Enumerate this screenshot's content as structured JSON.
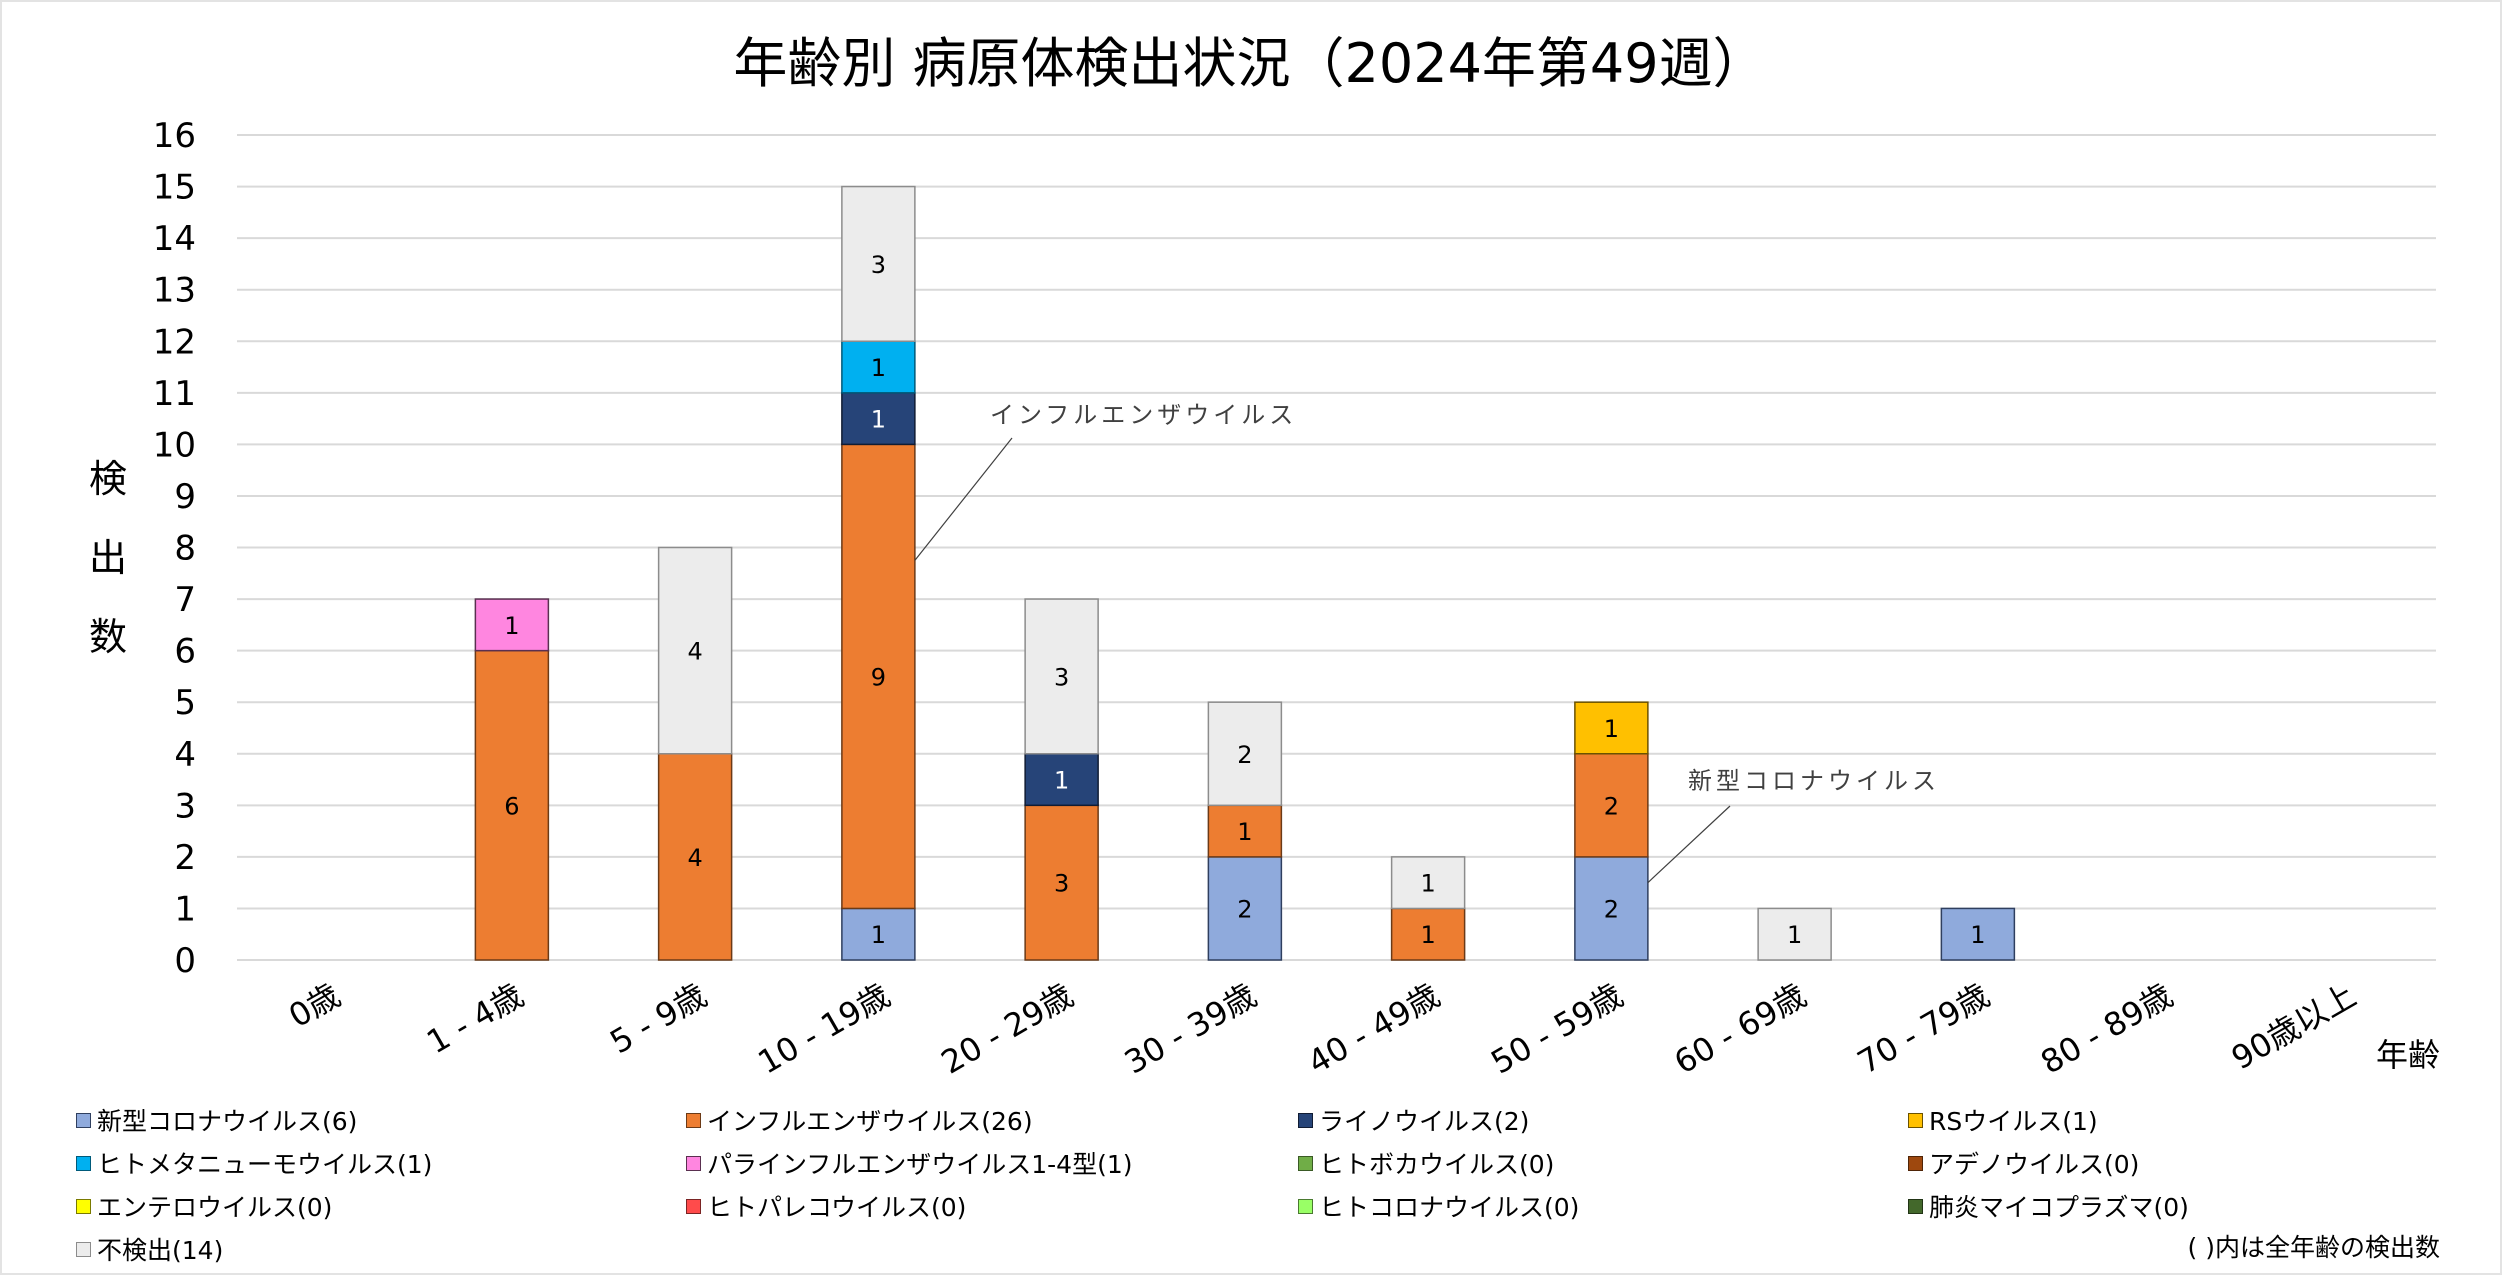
{
  "chart_data": {
    "type": "bar",
    "stacked": true,
    "title": "年齢別 病原体検出状況（2024年第49週）",
    "xlabel": "年齢",
    "ylabel": "検出数",
    "ylim": [
      0,
      16
    ],
    "yticks": [
      0,
      1,
      2,
      3,
      4,
      5,
      6,
      7,
      8,
      9,
      10,
      11,
      12,
      13,
      14,
      15,
      16
    ],
    "grid": true,
    "legend_position": "bottom",
    "categories": [
      "0歳",
      "1 - 4歳",
      "5 - 9歳",
      "10 - 19歳",
      "20 - 29歳",
      "30 - 39歳",
      "40 - 49歳",
      "50 - 59歳",
      "60 - 69歳",
      "70 - 79歳",
      "80 - 89歳",
      "90歳以上"
    ],
    "series": [
      {
        "name": "新型コロナウイルス",
        "total": 6,
        "legend_label": "新型コロナウイルス(6)",
        "color": "#8faadc",
        "border": "#2f3f5f",
        "label_color": "#000000",
        "values": [
          0,
          0,
          0,
          1,
          0,
          2,
          0,
          2,
          0,
          1,
          0,
          0
        ]
      },
      {
        "name": "インフルエンザウイルス",
        "total": 26,
        "legend_label": "インフルエンザウイルス(26)",
        "color": "#ed7d31",
        "border": "#6b3a17",
        "label_color": "#000000",
        "values": [
          0,
          6,
          4,
          9,
          3,
          1,
          1,
          2,
          0,
          0,
          0,
          0
        ]
      },
      {
        "name": "ライノウイルス",
        "total": 2,
        "legend_label": "ライノウイルス(2)",
        "color": "#264478",
        "border": "#111c33",
        "label_color": "#ffffff",
        "values": [
          0,
          0,
          0,
          1,
          1,
          0,
          0,
          0,
          0,
          0,
          0,
          0
        ]
      },
      {
        "name": "RSウイルス",
        "total": 1,
        "legend_label": "RSウイルス(1)",
        "color": "#ffc000",
        "border": "#6b5200",
        "label_color": "#000000",
        "values": [
          0,
          0,
          0,
          0,
          0,
          0,
          0,
          1,
          0,
          0,
          0,
          0
        ]
      },
      {
        "name": "ヒトメタニューモウイルス",
        "total": 1,
        "legend_label": "ヒトメタニューモウイルス(1)",
        "color": "#00b0f0",
        "border": "#005a7a",
        "label_color": "#000000",
        "values": [
          0,
          0,
          0,
          1,
          0,
          0,
          0,
          0,
          0,
          0,
          0,
          0
        ]
      },
      {
        "name": "パラインフルエンザウイルス1-4型",
        "total": 1,
        "legend_label": "パラインフルエンザウイルス1-4型(1)",
        "color": "#ff86e0",
        "border": "#5a3050",
        "label_color": "#000000",
        "values": [
          0,
          1,
          0,
          0,
          0,
          0,
          0,
          0,
          0,
          0,
          0,
          0
        ]
      },
      {
        "name": "ヒトボカウイルス",
        "total": 0,
        "legend_label": "ヒトボカウイルス(0)",
        "color": "#70ad47",
        "border": "#3a5a25",
        "label_color": "#000000",
        "values": [
          0,
          0,
          0,
          0,
          0,
          0,
          0,
          0,
          0,
          0,
          0,
          0
        ]
      },
      {
        "name": "アデノウイルス",
        "total": 0,
        "legend_label": "アデノウイルス(0)",
        "color": "#9e480e",
        "border": "#4f2407",
        "label_color": "#000000",
        "values": [
          0,
          0,
          0,
          0,
          0,
          0,
          0,
          0,
          0,
          0,
          0,
          0
        ]
      },
      {
        "name": "エンテロウイルス",
        "total": 0,
        "legend_label": "エンテロウイルス(0)",
        "color": "#ffff00",
        "border": "#7a7a00",
        "label_color": "#000000",
        "values": [
          0,
          0,
          0,
          0,
          0,
          0,
          0,
          0,
          0,
          0,
          0,
          0
        ]
      },
      {
        "name": "ヒトパレコウイルス",
        "total": 0,
        "legend_label": "ヒトパレコウイルス(0)",
        "color": "#ff4b4b",
        "border": "#7a2424",
        "label_color": "#000000",
        "values": [
          0,
          0,
          0,
          0,
          0,
          0,
          0,
          0,
          0,
          0,
          0,
          0
        ]
      },
      {
        "name": "ヒトコロナウイルス",
        "total": 0,
        "legend_label": "ヒトコロナウイルス(0)",
        "color": "#99ff66",
        "border": "#4a7a30",
        "label_color": "#000000",
        "values": [
          0,
          0,
          0,
          0,
          0,
          0,
          0,
          0,
          0,
          0,
          0,
          0
        ]
      },
      {
        "name": "肺炎マイコプラズマ",
        "total": 0,
        "legend_label": "肺炎マイコプラズマ(0)",
        "color": "#43682b",
        "border": "#213415",
        "label_color": "#000000",
        "values": [
          0,
          0,
          0,
          0,
          0,
          0,
          0,
          0,
          0,
          0,
          0,
          0
        ]
      },
      {
        "name": "不検出",
        "total": 14,
        "legend_label": "不検出(14)",
        "color": "#ececec",
        "border": "#8c8c8c",
        "label_color": "#000000",
        "values": [
          0,
          0,
          4,
          3,
          3,
          2,
          1,
          0,
          1,
          0,
          0,
          0
        ]
      }
    ],
    "annotations": [
      {
        "text": "インフルエンザウイルス",
        "category": "10 - 19歳",
        "series": "インフルエンザウイルス"
      },
      {
        "text": "新型コロナウイルス",
        "category": "50 - 59歳",
        "series": "新型コロナウイルス"
      }
    ],
    "legend_note": "( )内は全年齢の検出数"
  }
}
